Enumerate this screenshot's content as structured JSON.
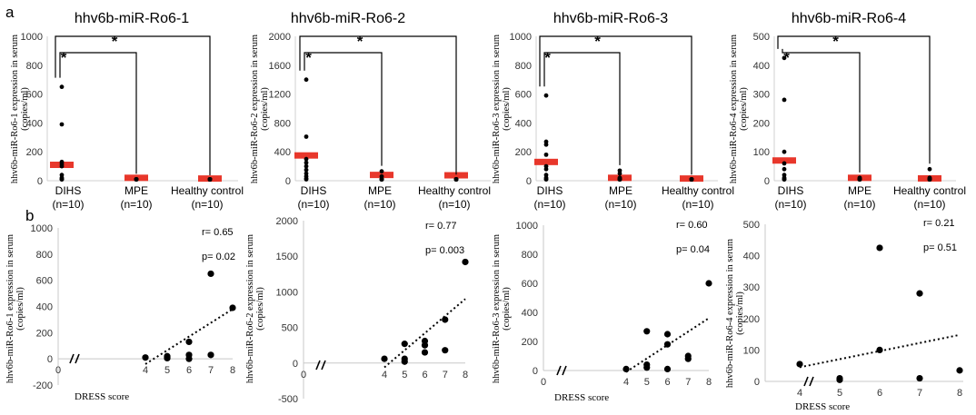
{
  "panel_labels": {
    "a": "a",
    "b": "b"
  },
  "chart_data": [
    {
      "panel": "a",
      "type": "scatter",
      "title": "hhv6b-miR-Ro6-1",
      "ylabel_lines": [
        "hhv6b-miR-Ro6-1 expression in serum",
        "(copies/ml)"
      ],
      "ylim": [
        0,
        1000
      ],
      "yticks": [
        0,
        200,
        400,
        600,
        800,
        1000
      ],
      "categories": [
        "DIHS",
        "MPE",
        "Healthy control"
      ],
      "n_labels": [
        "(n=10)",
        "(n=10)",
        "(n=10)"
      ],
      "points": [
        [
          650,
          390,
          130,
          115,
          100,
          40,
          20,
          10,
          5,
          2
        ],
        [
          10,
          5,
          2,
          1,
          0,
          0,
          0,
          0,
          0,
          0
        ],
        [
          0,
          0,
          0,
          0,
          0,
          0,
          0,
          0,
          0,
          0
        ]
      ],
      "means": [
        110,
        20,
        15
      ],
      "significance": [
        {
          "from": 0,
          "to": 1,
          "label": "*"
        },
        {
          "from": 0,
          "to": 2,
          "label": "*"
        }
      ]
    },
    {
      "panel": "a",
      "type": "scatter",
      "title": "hhv6b-miR-Ro6-2",
      "ylabel_lines": [
        "hhv6b-miR-Ro6-2 expression in serum",
        "(copies/ml)"
      ],
      "ylim": [
        0,
        2000
      ],
      "yticks": [
        0,
        400,
        800,
        1200,
        1600,
        2000
      ],
      "categories": [
        "DIHS",
        "MPE",
        "Healthy control"
      ],
      "n_labels": [
        "(n=10)",
        "(n=10)",
        "(n=10)"
      ],
      "points": [
        [
          1400,
          610,
          300,
          250,
          200,
          150,
          100,
          60,
          30,
          10
        ],
        [
          130,
          60,
          20,
          5,
          0,
          0,
          0,
          0,
          0,
          0
        ],
        [
          10,
          5,
          0,
          0,
          0,
          0,
          0,
          0,
          0,
          0
        ]
      ],
      "means": [
        350,
        80,
        75
      ],
      "significance": [
        {
          "from": 0,
          "to": 1,
          "label": "*"
        },
        {
          "from": 0,
          "to": 2,
          "label": "*"
        }
      ]
    },
    {
      "panel": "a",
      "type": "scatter",
      "title": "hhv6b-miR-Ro6-3",
      "ylabel_lines": [
        "hhv6b-miR-Ro6-3 expression in serum",
        "(copies/ml)"
      ],
      "ylim": [
        0,
        1000
      ],
      "yticks": [
        0,
        200,
        400,
        600,
        800,
        1000
      ],
      "categories": [
        "DIHS",
        "MPE",
        "Healthy control"
      ],
      "n_labels": [
        "(n=10)",
        "(n=10)",
        "(n=10)"
      ],
      "points": [
        [
          590,
          270,
          250,
          180,
          100,
          80,
          40,
          20,
          10,
          5
        ],
        [
          70,
          50,
          20,
          5,
          0,
          0,
          0,
          0,
          0,
          0
        ],
        [
          5,
          0,
          0,
          0,
          0,
          0,
          0,
          0,
          0,
          0
        ]
      ],
      "means": [
        130,
        20,
        15
      ],
      "significance": [
        {
          "from": 0,
          "to": 1,
          "label": "*"
        },
        {
          "from": 0,
          "to": 2,
          "label": "*"
        }
      ]
    },
    {
      "panel": "a",
      "type": "scatter",
      "title": "hhv6b-miR-Ro6-4",
      "ylabel_lines": [
        "hhv6b-miR-Ro6-4 expression in serum",
        "(copies/ml)"
      ],
      "ylim": [
        0,
        500
      ],
      "yticks": [
        0,
        100,
        200,
        300,
        400,
        500
      ],
      "categories": [
        "DIHS",
        "MPE",
        "Healthy control"
      ],
      "n_labels": [
        "(n=10)",
        "(n=10)",
        "(n=10)"
      ],
      "points": [
        [
          425,
          280,
          100,
          60,
          40,
          20,
          10,
          5,
          2,
          1
        ],
        [
          10,
          5,
          2,
          0,
          0,
          0,
          0,
          0,
          0,
          0
        ],
        [
          40,
          10,
          5,
          0,
          0,
          0,
          0,
          0,
          0,
          0
        ]
      ],
      "means": [
        70,
        10,
        8
      ],
      "significance": [
        {
          "from": 0,
          "to": 1,
          "label": "*"
        },
        {
          "from": 0,
          "to": 2,
          "label": "*"
        }
      ]
    },
    {
      "panel": "b",
      "type": "scatter",
      "ylabel_lines": [
        "hhv6b-miR-Ro6-1 expression in serum",
        "(copies/ml)"
      ],
      "xlabel": "DRESS score",
      "xlim": [
        0,
        8
      ],
      "xticks": [
        0,
        4,
        5,
        6,
        7,
        8
      ],
      "ylim": [
        -200,
        1000
      ],
      "yticks": [
        -200,
        0,
        200,
        400,
        600,
        800,
        1000
      ],
      "r_text": "r= 0.65",
      "p_text": "p= 0.02",
      "x": [
        4,
        5,
        5,
        5,
        6,
        6,
        6,
        7,
        7,
        8
      ],
      "y": [
        10,
        20,
        10,
        5,
        130,
        30,
        0,
        650,
        30,
        390
      ],
      "trend": [
        [
          4,
          -40
        ],
        [
          8,
          380
        ]
      ]
    },
    {
      "panel": "b",
      "type": "scatter",
      "ylabel_lines": [
        "hhv6b-miR-Ro6-2 expression in serum",
        "(copies/ml)"
      ],
      "xlabel": "DRESS score",
      "xlim": [
        0,
        8
      ],
      "xticks": [
        0,
        4,
        5,
        6,
        7,
        8
      ],
      "ylim": [
        -500,
        2000
      ],
      "yticks": [
        -500,
        0,
        500,
        1000,
        1500,
        2000
      ],
      "r_text": "r= 0.77",
      "p_text": "p= 0.003",
      "x": [
        4,
        5,
        5,
        5,
        6,
        6,
        6,
        7,
        7,
        8
      ],
      "y": [
        60,
        270,
        60,
        20,
        310,
        250,
        150,
        610,
        180,
        1420
      ],
      "trend": [
        [
          4,
          -60
        ],
        [
          8,
          900
        ]
      ]
    },
    {
      "panel": "b",
      "type": "scatter",
      "ylabel_lines": [
        "hhv6b-miR-Ro6-3 expression in serum",
        "(copies/ml)"
      ],
      "xlabel": "DRESS score",
      "xlim": [
        0,
        8
      ],
      "xticks": [
        0,
        4,
        5,
        6,
        7,
        8
      ],
      "ylim": [
        0,
        1000
      ],
      "yticks": [
        0,
        200,
        400,
        600,
        800,
        1000
      ],
      "r_text": "r= 0.60",
      "p_text": "p= 0.04",
      "x": [
        4,
        5,
        5,
        5,
        6,
        6,
        6,
        7,
        7,
        8
      ],
      "y": [
        10,
        270,
        40,
        20,
        250,
        180,
        10,
        100,
        80,
        600
      ],
      "trend": [
        [
          4,
          -10
        ],
        [
          8,
          360
        ]
      ]
    },
    {
      "panel": "b",
      "type": "scatter",
      "ylabel_lines": [
        "hhv6b-miR-Ro6-4 expression in serum",
        "(copies/ml)"
      ],
      "xlabel": "DRESS score",
      "xlim": [
        0,
        8
      ],
      "xticks": [
        4,
        5,
        6,
        7,
        8
      ],
      "ylim": [
        0,
        500
      ],
      "yticks": [
        0,
        100,
        200,
        300,
        400,
        500
      ],
      "r_text": "r= 0.21",
      "p_text": "p= 0.51",
      "x": [
        4,
        5,
        5,
        6,
        6,
        7,
        7,
        8
      ],
      "y": [
        55,
        10,
        5,
        425,
        100,
        280,
        10,
        35
      ],
      "trend": [
        [
          4,
          45
        ],
        [
          8,
          148
        ]
      ]
    }
  ]
}
